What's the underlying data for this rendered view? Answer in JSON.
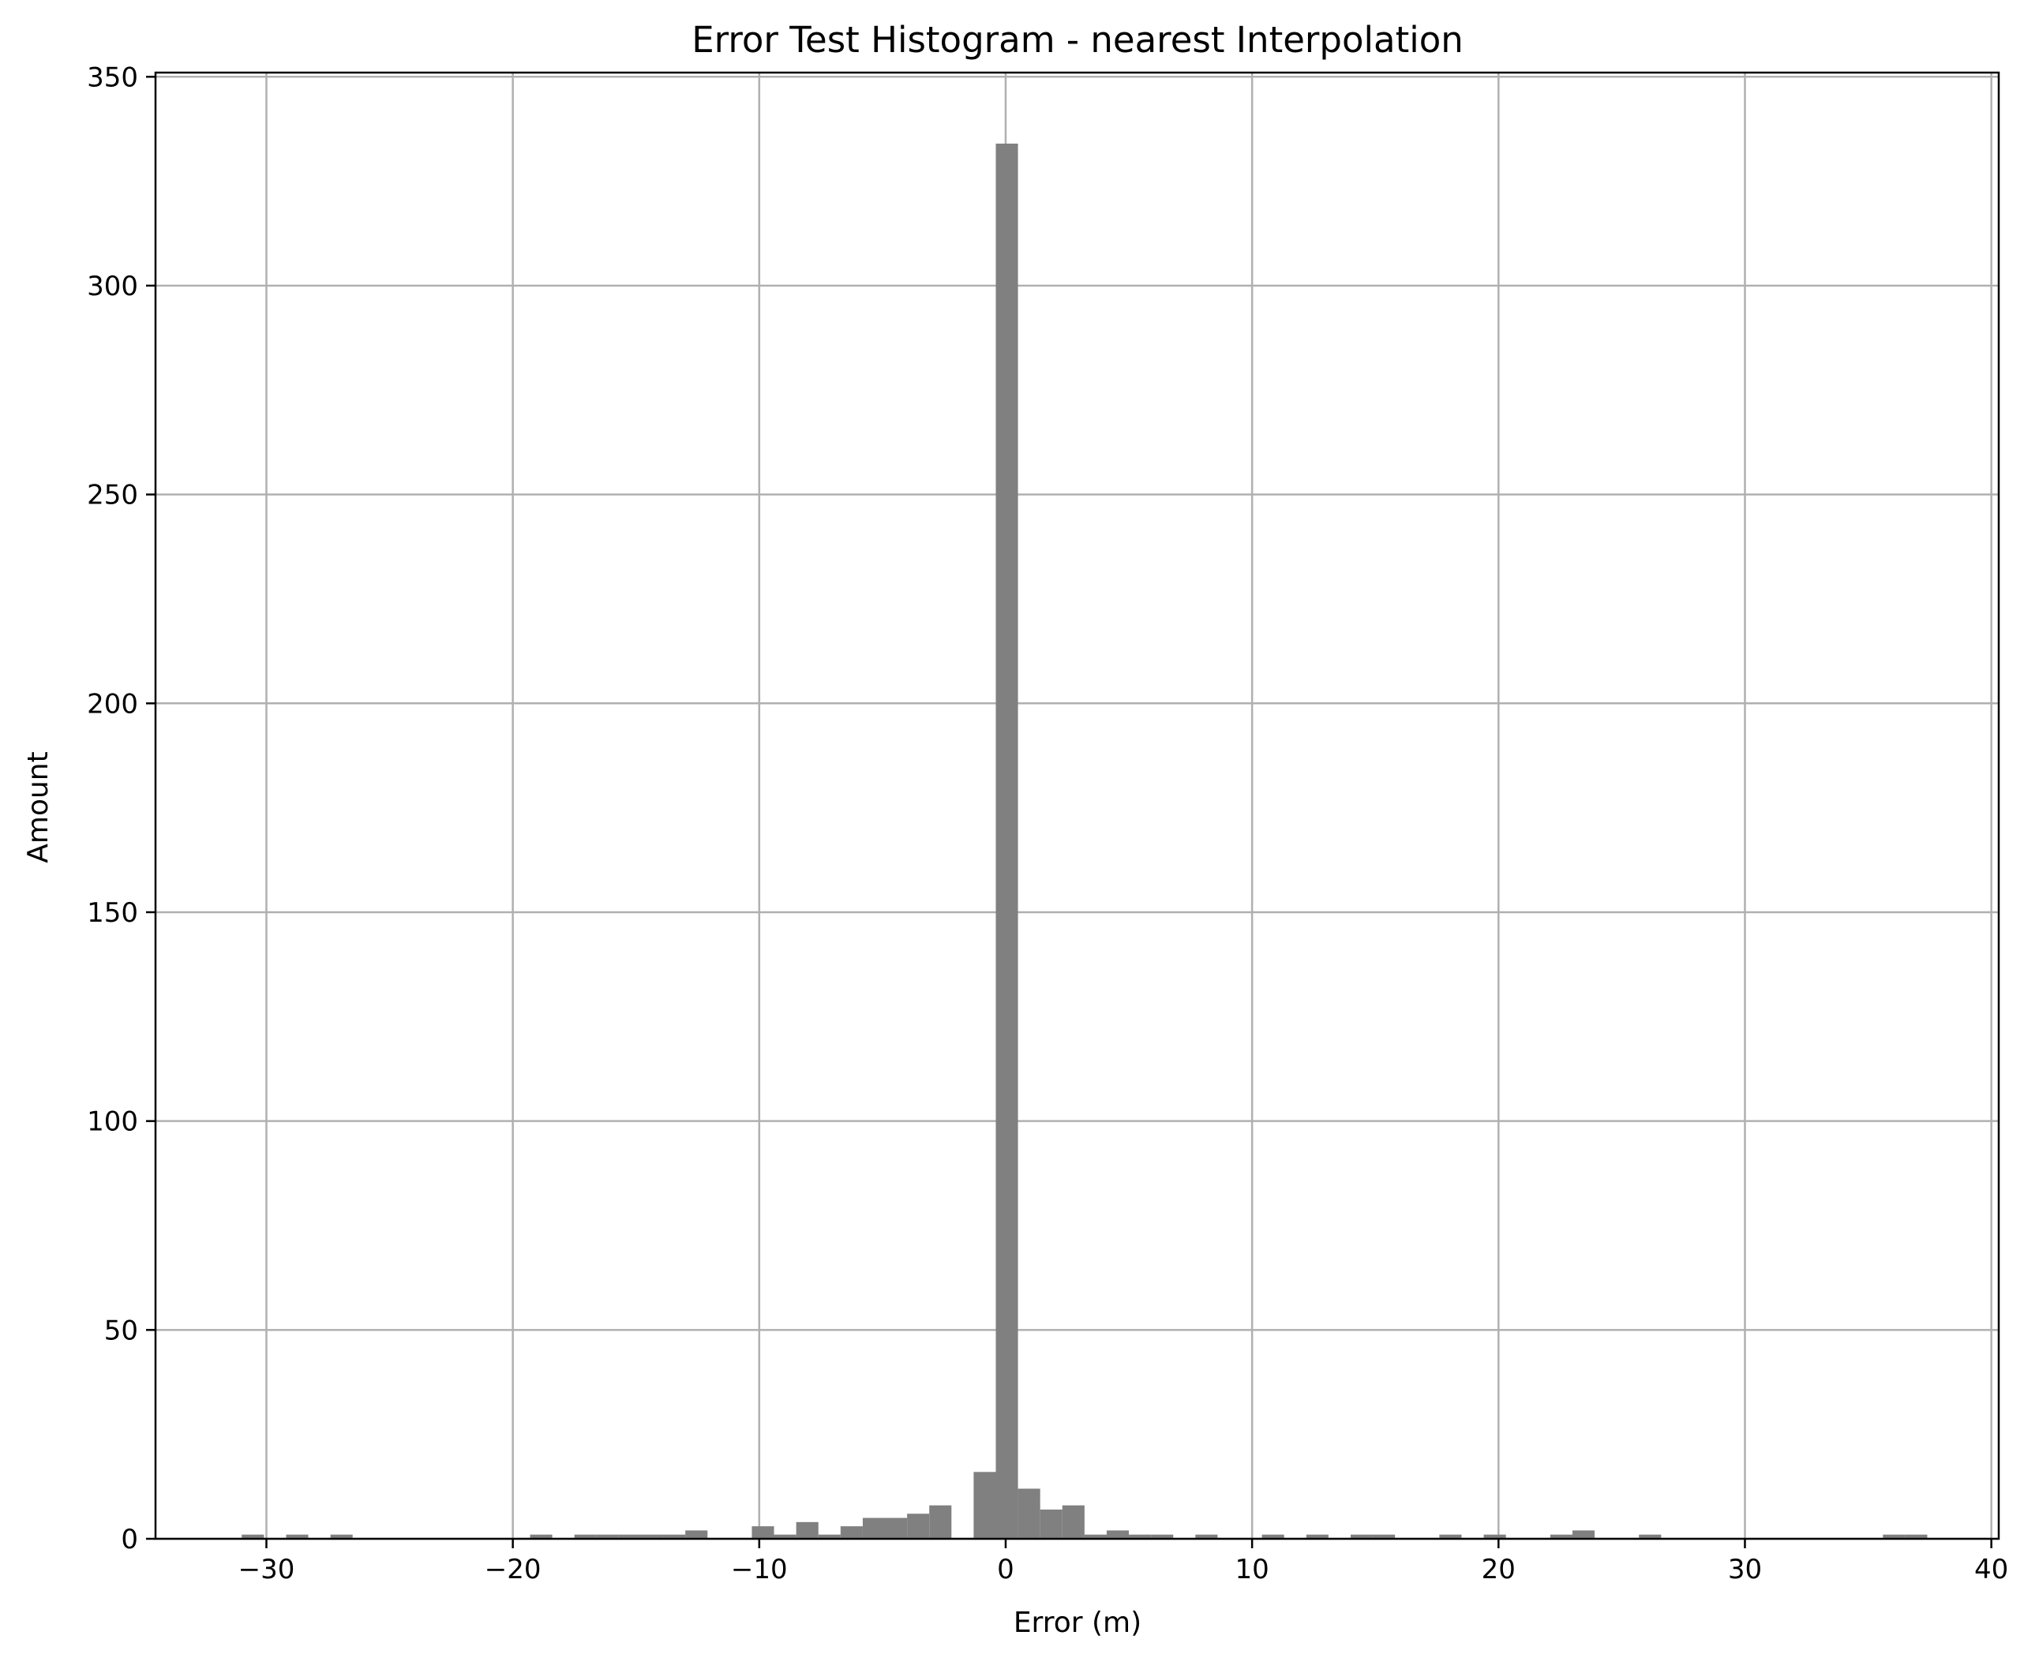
{
  "chart_data": {
    "type": "bar",
    "title": "Error Test Histogram - nearest Interpolation",
    "xlabel": "Error (m)",
    "ylabel": "Amount",
    "xlim": [
      -34.5,
      40.3
    ],
    "ylim": [
      0,
      351
    ],
    "x_ticks": [
      -30,
      -20,
      -10,
      0,
      10,
      20,
      30,
      40
    ],
    "x_tick_labels": [
      "−30",
      "−20",
      "−10",
      "0",
      "10",
      "20",
      "30",
      "40"
    ],
    "y_ticks": [
      0,
      50,
      100,
      150,
      200,
      250,
      300,
      350
    ],
    "y_tick_labels": [
      "0",
      "50",
      "100",
      "150",
      "200",
      "250",
      "300",
      "350"
    ],
    "grid": true,
    "bar_color": "#808080",
    "grid_color": "#b0b0b0",
    "bin_width": 0.9,
    "bins": [
      {
        "x0": -31.0,
        "count": 1
      },
      {
        "x0": -29.2,
        "count": 1
      },
      {
        "x0": -27.4,
        "count": 1
      },
      {
        "x0": -19.3,
        "count": 1
      },
      {
        "x0": -17.5,
        "count": 1
      },
      {
        "x0": -16.6,
        "count": 1
      },
      {
        "x0": -15.7,
        "count": 1
      },
      {
        "x0": -14.8,
        "count": 1
      },
      {
        "x0": -13.9,
        "count": 1
      },
      {
        "x0": -13.0,
        "count": 2
      },
      {
        "x0": -10.3,
        "count": 3
      },
      {
        "x0": -9.4,
        "count": 1
      },
      {
        "x0": -8.5,
        "count": 4
      },
      {
        "x0": -7.6,
        "count": 1
      },
      {
        "x0": -6.7,
        "count": 3
      },
      {
        "x0": -5.8,
        "count": 5
      },
      {
        "x0": -4.9,
        "count": 5
      },
      {
        "x0": -4.0,
        "count": 6
      },
      {
        "x0": -3.1,
        "count": 8
      },
      {
        "x0": -1.3,
        "count": 16
      },
      {
        "x0": -0.4,
        "count": 334
      },
      {
        "x0": 0.5,
        "count": 12
      },
      {
        "x0": 1.4,
        "count": 7
      },
      {
        "x0": 2.3,
        "count": 8
      },
      {
        "x0": 3.2,
        "count": 1
      },
      {
        "x0": 4.1,
        "count": 2
      },
      {
        "x0": 5.0,
        "count": 1
      },
      {
        "x0": 5.9,
        "count": 1
      },
      {
        "x0": 7.7,
        "count": 1
      },
      {
        "x0": 10.4,
        "count": 1
      },
      {
        "x0": 12.2,
        "count": 1
      },
      {
        "x0": 14.0,
        "count": 1
      },
      {
        "x0": 14.9,
        "count": 1
      },
      {
        "x0": 17.6,
        "count": 1
      },
      {
        "x0": 19.4,
        "count": 1
      },
      {
        "x0": 22.1,
        "count": 1
      },
      {
        "x0": 23.0,
        "count": 2
      },
      {
        "x0": 25.7,
        "count": 1
      },
      {
        "x0": 35.6,
        "count": 1
      },
      {
        "x0": 36.5,
        "count": 1
      }
    ]
  }
}
